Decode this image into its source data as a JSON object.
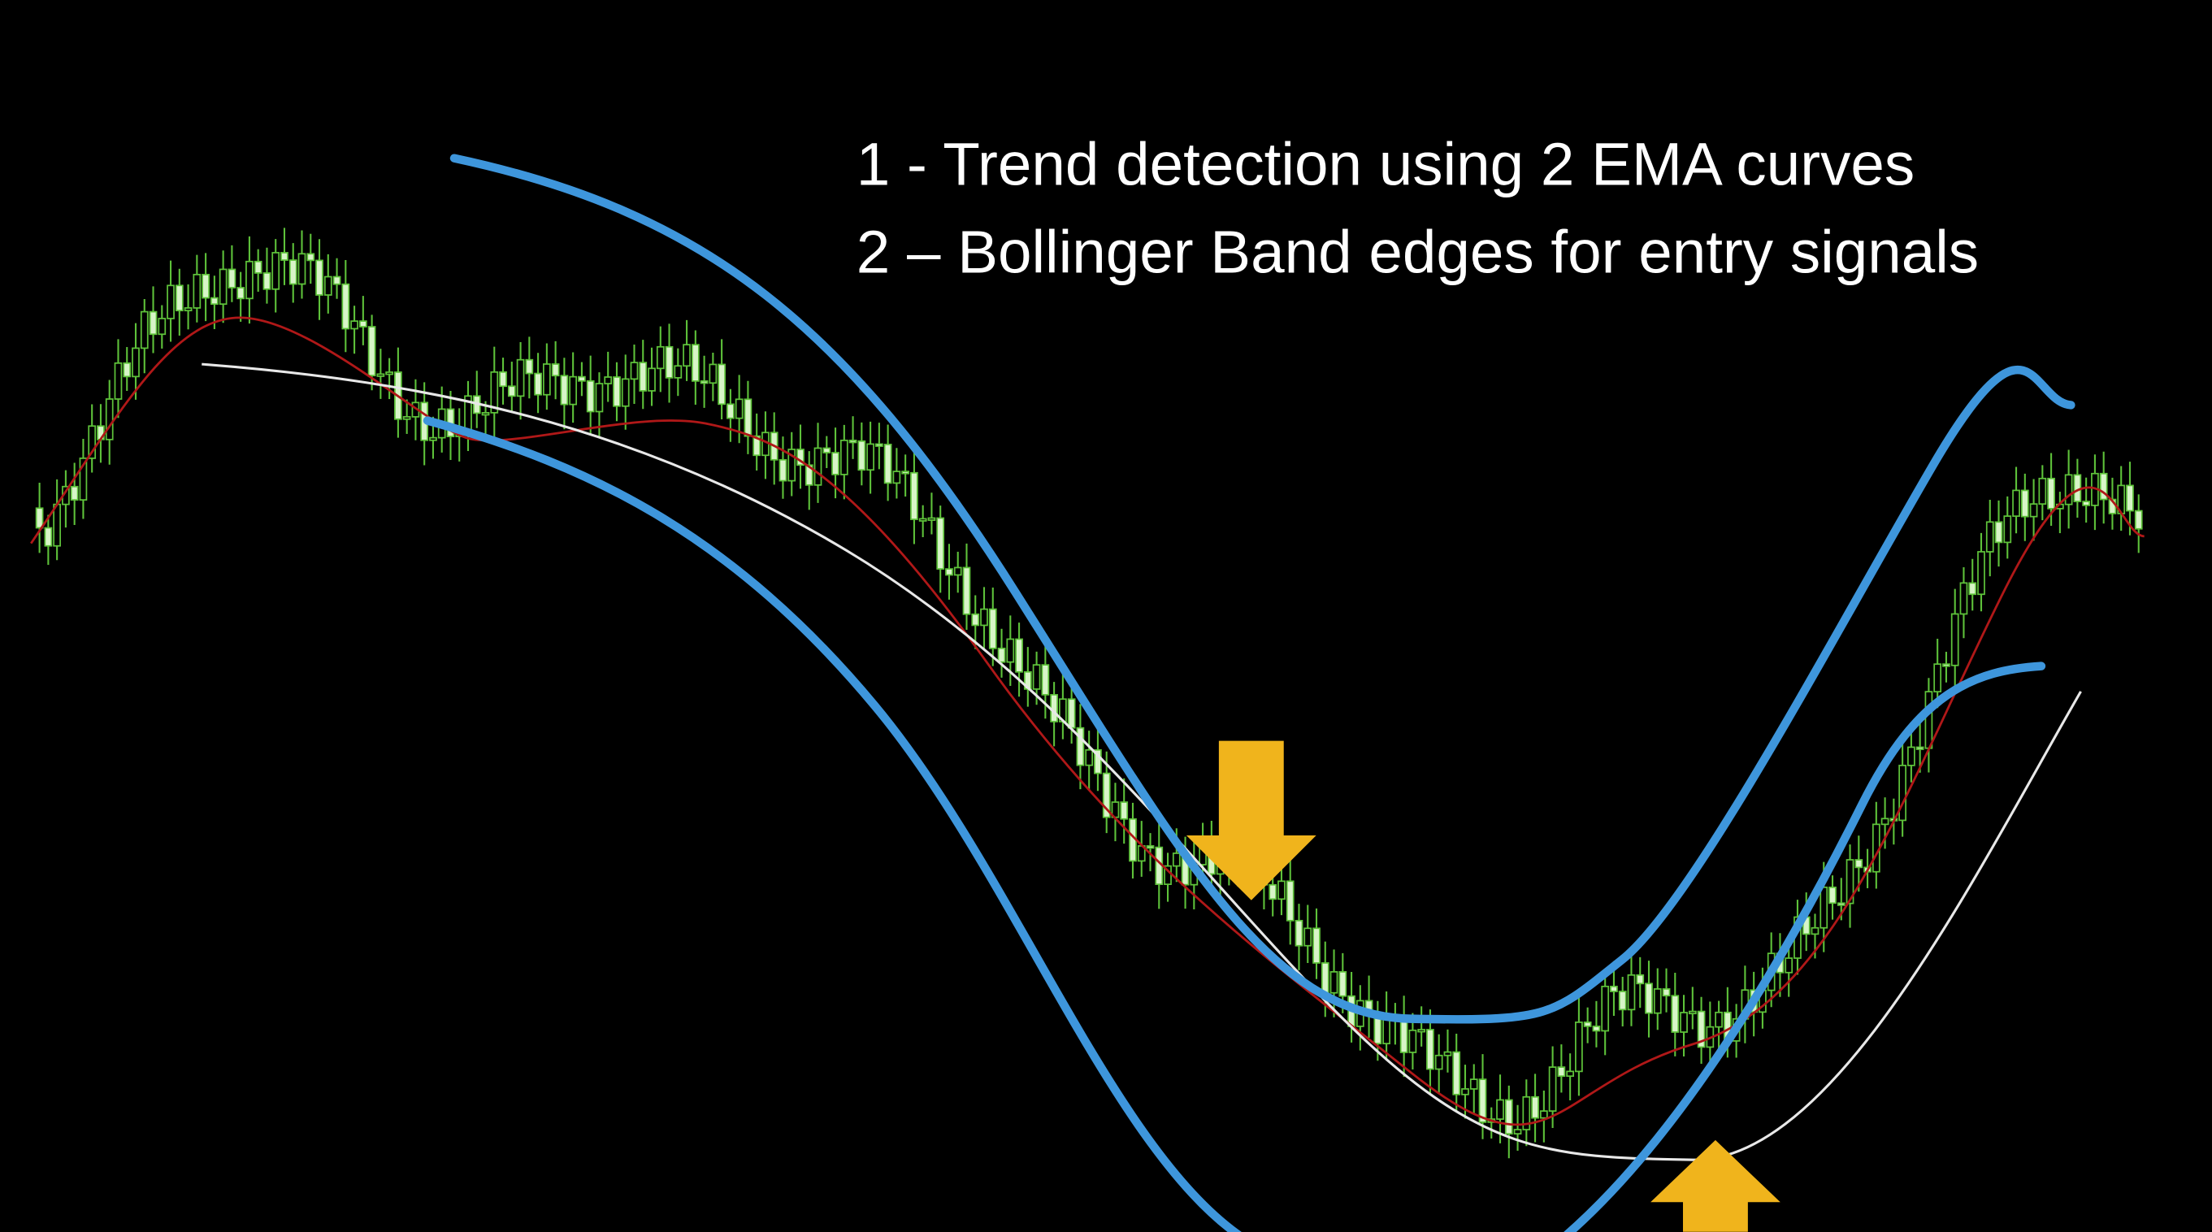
{
  "annotations": {
    "lines": [
      "1 - Trend detection using 2 EMA curves",
      "2 – Bollinger Band edges for entry signals"
    ]
  }
}
